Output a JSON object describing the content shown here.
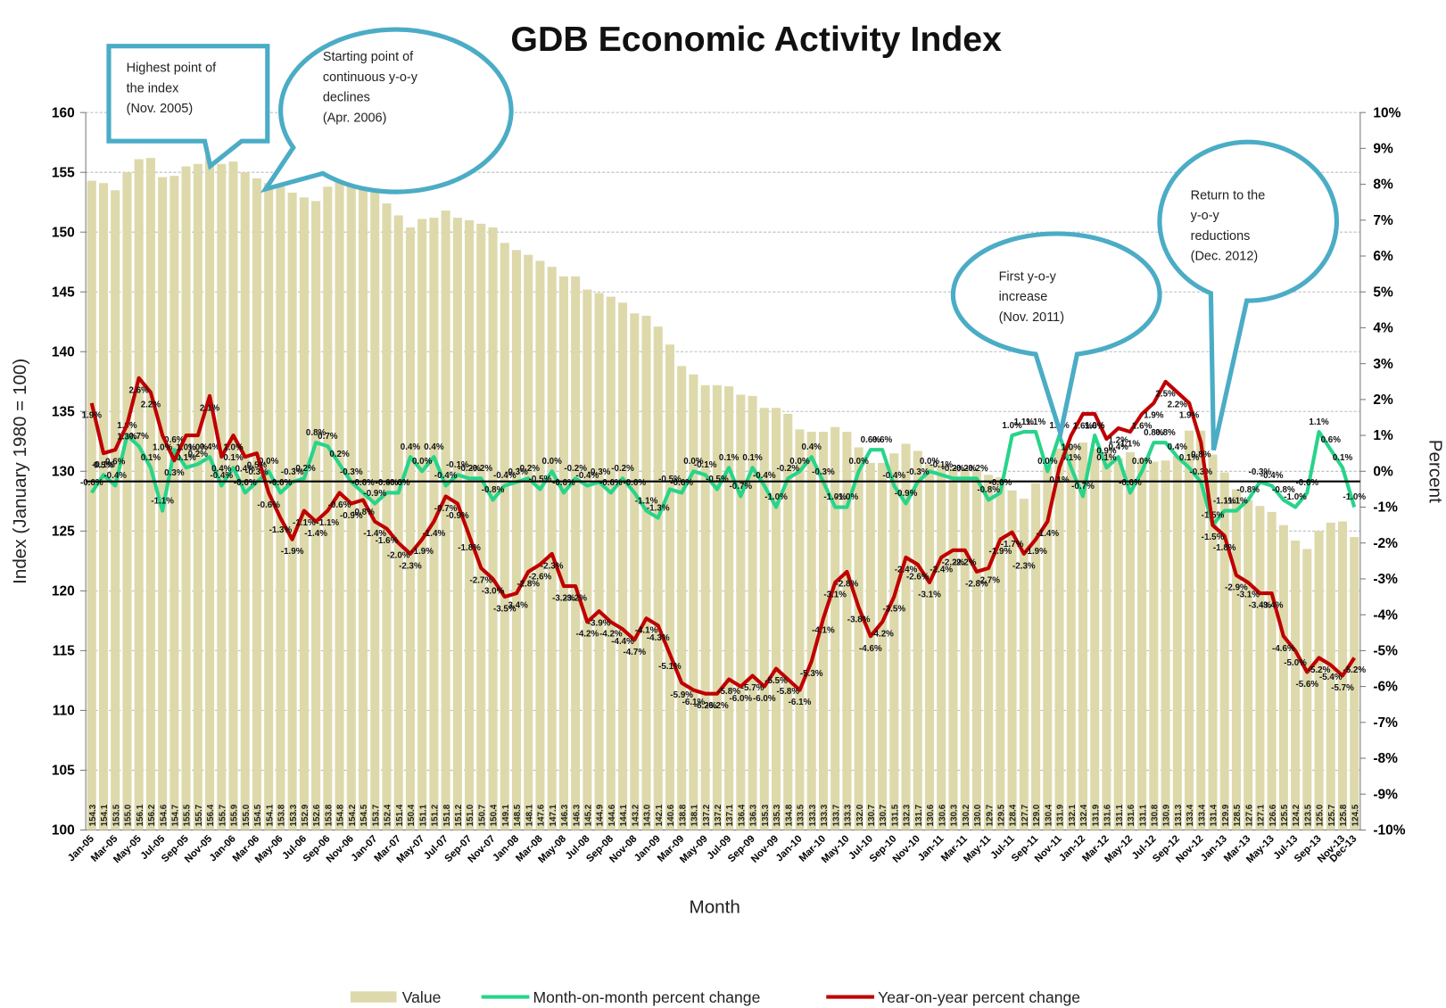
{
  "chart_data": {
    "type": "bar-line",
    "title": "GDB Economic Activity Index",
    "x_label": "Month",
    "y_label": "Index (January 1980 = 100)",
    "y2_label": "Percent",
    "annotations": [
      [
        "Highest point of",
        "the index",
        "(Nov. 2005)"
      ],
      [
        "Starting point of",
        "continuous y-o-y",
        "declines",
        "(Apr. 2006)"
      ],
      [
        "First y-o-y",
        "increase",
        "(Nov. 2011)"
      ],
      [
        "Return to the",
        "y-o-y",
        "reductions",
        "(Dec. 2012)"
      ]
    ],
    "categories": [
      "Jan-05",
      null,
      "Mar-05",
      null,
      "May-05",
      null,
      "Jul-05",
      null,
      "Sep-05",
      null,
      "Nov-05",
      null,
      "Jan-06",
      null,
      "Mar-06",
      null,
      "May-06",
      null,
      "Jul-06",
      null,
      "Sep-06",
      null,
      "Nov-06",
      null,
      "Jan-07",
      null,
      "Mar-07",
      null,
      "May-07",
      null,
      "Jul-07",
      null,
      "Sep-07",
      null,
      "Nov-07",
      null,
      "Jan-08",
      null,
      "Mar-08",
      null,
      "May-08",
      null,
      "Jul-08",
      null,
      "Sep-08",
      null,
      "Nov-08",
      null,
      "Jan-09",
      null,
      "Mar-09",
      null,
      "May-09",
      null,
      "Jul-09",
      null,
      "Sep-09",
      null,
      "Nov-09",
      null,
      "Jan-10",
      null,
      "Mar-10",
      null,
      "May-10",
      null,
      "Jul-10",
      null,
      "Sep-10",
      null,
      "Nov-10",
      null,
      "Jan-11",
      null,
      "Mar-11",
      null,
      "May-11",
      null,
      "Jul-11",
      null,
      "Sep-11",
      null,
      "Nov-11",
      null,
      "Jan-12",
      null,
      "Mar-12",
      null,
      "May-12",
      null,
      "Jul-12",
      null,
      "Sep-12",
      null,
      "Nov-12",
      null,
      "Jan-13",
      null,
      "Mar-13",
      null,
      "May-13",
      null,
      "Jul-13",
      null,
      "Sep-13",
      null,
      "Nov-13",
      "Dec-13"
    ],
    "series": [
      {
        "name": "Value",
        "color": "#ddd9ab",
        "values": [
          154.3,
          154.1,
          153.5,
          155.0,
          156.1,
          156.2,
          154.6,
          154.7,
          155.5,
          155.7,
          156.4,
          155.7,
          155.9,
          155.0,
          154.5,
          154.1,
          153.8,
          153.3,
          152.9,
          152.6,
          153.8,
          154.8,
          154.2,
          154.5,
          153.7,
          152.4,
          151.4,
          150.4,
          151.1,
          151.2,
          151.8,
          151.2,
          151.0,
          150.7,
          150.4,
          149.1,
          148.5,
          148.1,
          147.6,
          147.1,
          146.3,
          146.3,
          145.2,
          144.9,
          144.6,
          144.1,
          143.2,
          143.0,
          142.1,
          140.6,
          138.8,
          138.1,
          137.2,
          137.2,
          137.1,
          136.4,
          136.3,
          135.3,
          135.3,
          134.8,
          133.5,
          133.3,
          133.3,
          133.7,
          133.3,
          132.0,
          130.7,
          130.7,
          131.5,
          132.3,
          131.7,
          130.6,
          130.6,
          130.3,
          130.2,
          130.0,
          129.7,
          129.5,
          128.4,
          127.7,
          129.0,
          130.4,
          131.9,
          132.1,
          132.4,
          131.9,
          131.6,
          131.1,
          131.6,
          131.1,
          130.8,
          130.9,
          131.3,
          133.4,
          133.4,
          131.4,
          129.9,
          128.5,
          127.6,
          127.1,
          126.6,
          125.5,
          124.2,
          123.5,
          125.0,
          125.7,
          125.8,
          124.5
        ],
        "value_labels": [
          "154.3",
          "154.1",
          "153.5",
          "155.0",
          "156.1",
          "156.2",
          "154.6",
          "154.7",
          "155.5",
          "155.7",
          "156.4",
          "155.7",
          "155.9",
          "155.0",
          "154.5",
          "154.1",
          "153.8",
          "153.3",
          "152.9",
          "152.6",
          "153.8",
          "154.8",
          "154.2",
          "154.5",
          "153.7",
          "152.4",
          "151.4",
          "150.4",
          "151.1",
          "151.2",
          "151.8",
          "151.2",
          "151.0",
          "150.7",
          "150.4",
          "149.1",
          "148.5",
          "148.1",
          "147.6",
          "147.1",
          "146.3",
          "146.3",
          "145.2",
          "144.9",
          "144.6",
          "144.1",
          "143.2",
          "143.0",
          "142.1",
          "140.6",
          "138.8",
          "138.1",
          "137.2",
          "137.2",
          "137.1",
          "136.4",
          "136.3",
          "135.3",
          "135.3",
          "134.8",
          "133.5",
          "133.3",
          "133.3",
          "133.7",
          "133.3",
          "132.0",
          "130.7",
          "130.7",
          "131.5",
          "132.3",
          "131.7",
          "130.6",
          "130.6",
          "130.3",
          "130.2",
          "130.0",
          "129.7",
          "129.5",
          "128.4",
          "127.7",
          "129.0",
          "130.4",
          "131.9",
          "132.1",
          "132.4",
          "131.9",
          "131.6",
          "131.1",
          "131.6",
          "131.1",
          "130.8",
          "130.9",
          "131.3",
          "133.4",
          "133.4",
          "131.4",
          "129.9",
          "128.5",
          "127.6",
          "127.1",
          "126.6",
          "125.5",
          "124.2",
          "123.5",
          "125.0",
          "125.7",
          "125.8",
          "124.5"
        ]
      },
      {
        "name": "Month-on-month percent change",
        "color": "#27d48a",
        "axis": "y2",
        "values": [
          -0.6,
          -0.1,
          -0.4,
          1.0,
          0.7,
          0.1,
          -1.1,
          0.6,
          0.1,
          0.2,
          0.4,
          -0.4,
          0.1,
          -0.6,
          -0.3,
          0.0,
          -0.6,
          -0.3,
          -0.2,
          0.8,
          0.7,
          0.2,
          -0.3,
          -0.6,
          -0.9,
          -0.6,
          -0.6,
          0.4,
          0.0,
          0.4,
          -0.4,
          -0.1,
          -0.2,
          -0.2,
          -0.8,
          -0.4,
          -0.3,
          -0.2,
          -0.5,
          0.0,
          -0.6,
          -0.2,
          -0.4,
          -0.3,
          -0.6,
          -0.2,
          -0.6,
          -1.1,
          -1.3,
          -0.5,
          -0.6,
          0.0,
          -0.1,
          -0.5,
          0.1,
          -0.7,
          0.1,
          -0.4,
          -1.0,
          -0.2,
          0.0,
          0.4,
          -0.3,
          -1.0,
          -1.0,
          0.0,
          0.6,
          0.6,
          -0.4,
          -0.9,
          -0.3,
          0.0,
          -0.1,
          -0.2,
          -0.2,
          -0.2,
          -0.8,
          -0.6,
          1.0,
          1.1,
          1.1,
          0.0,
          1.0,
          0.1,
          -0.7,
          1.0,
          0.1,
          0.4,
          -0.6,
          0.0,
          0.8,
          0.8,
          0.4,
          0.1,
          -0.3,
          -1.5,
          -1.1,
          -1.1,
          -0.8,
          -0.3,
          -0.4,
          -0.8,
          -1.0,
          -0.6,
          1.1,
          0.6,
          0.1,
          -1.0
        ],
        "value_labels": [
          "-0.6%",
          "-0.1%",
          "-0.4%",
          "1.0%",
          "0.7%",
          "0.1%",
          "-1.1%",
          "0.6%",
          "0.1%",
          "0.2%",
          "0.4%",
          "-0.4%",
          "0.1%",
          "-0.6%",
          "-0.3%",
          "0.0%",
          "-0.6%",
          "-0.3%",
          "-0.2%",
          "0.8%",
          "0.7%",
          "0.2%",
          "-0.3%",
          "-0.6%",
          "-0.9%",
          "-0.6%",
          "-0.6%",
          "0.4%",
          "0.0%",
          "0.4%",
          "-0.4%",
          "-0.1%",
          "-0.2%",
          "-0.2%",
          "-0.8%",
          "-0.4%",
          "-0.3%",
          "-0.2%",
          "-0.5%",
          "0.0%",
          "-0.6%",
          "-0.2%",
          "-0.4%",
          "-0.3%",
          "-0.6%",
          "-0.2%",
          "-0.6%",
          "-1.1%",
          "-1.3%",
          "-0.5%",
          "-0.6%",
          "0.0%",
          "-0.1%",
          "-0.5%",
          "0.1%",
          "-0.7%",
          "0.1%",
          "-0.4%",
          "-1.0%",
          "-0.2%",
          "0.0%",
          "0.4%",
          "-0.3%",
          "-1.0%",
          "-1.0%",
          "0.0%",
          "0.6%",
          "0.6%",
          "-0.4%",
          "-0.9%",
          "-0.3%",
          "0.0%",
          "-0.1%",
          "-0.2%",
          "-0.2%",
          "-0.2%",
          "-0.8%",
          "-0.6%",
          "1.0%",
          "1.1%",
          "1.1%",
          "0.0%",
          "1.0%",
          "0.1%",
          "-0.7%",
          "1.0%",
          "0.1%",
          "0.4%",
          "-0.6%",
          "0.0%",
          "0.8%",
          "0.8%",
          "0.4%",
          "0.1%",
          "-0.3%",
          "-1.5%",
          "-1.1%",
          "-1.1%",
          "-0.8%",
          "-0.3%",
          "-0.4%",
          "-0.8%",
          "-1.0%",
          "-0.6%",
          "1.1%",
          "0.6%",
          "0.1%",
          "-1.0%"
        ]
      },
      {
        "name": "Year-on-year percent change",
        "color": "#c00000",
        "axis": "y2",
        "values": [
          1.9,
          0.5,
          0.6,
          1.3,
          2.6,
          2.2,
          1.0,
          0.3,
          1.0,
          1.0,
          2.1,
          0.4,
          1.0,
          0.4,
          0.5,
          -0.6,
          -1.3,
          -1.9,
          -1.1,
          -1.4,
          -1.1,
          -0.6,
          -0.9,
          -0.8,
          -1.4,
          -1.6,
          -2.0,
          -2.3,
          -1.9,
          -1.4,
          -0.7,
          -0.9,
          -1.8,
          -2.7,
          -3.0,
          -3.5,
          -3.4,
          -2.8,
          -2.6,
          -2.3,
          -3.2,
          -3.2,
          -4.2,
          -3.9,
          -4.2,
          -4.4,
          -4.7,
          -4.1,
          -4.3,
          -5.1,
          -5.9,
          -6.1,
          -6.2,
          -6.2,
          -5.8,
          -6.0,
          -5.7,
          -6.0,
          -5.5,
          -5.8,
          -6.1,
          -5.3,
          -4.1,
          -3.1,
          -2.8,
          -3.8,
          -4.6,
          -4.2,
          -3.5,
          -2.4,
          -2.6,
          -3.1,
          -2.4,
          -2.2,
          -2.2,
          -2.8,
          -2.7,
          -1.9,
          -1.7,
          -2.3,
          -1.9,
          -1.4,
          0.1,
          1.0,
          1.6,
          1.6,
          0.9,
          1.2,
          1.1,
          1.6,
          1.9,
          2.5,
          2.2,
          1.9,
          0.8,
          -1.5,
          -1.8,
          -2.9,
          -3.1,
          -3.4,
          -3.4,
          -4.6,
          -5.0,
          -5.6,
          -5.2,
          -5.4,
          -5.7,
          -5.2
        ],
        "value_labels": [
          "1.9%",
          "0.5%",
          "0.6%",
          "1.3%",
          "2.6%",
          "2.2%",
          "1.0%",
          "0.3%",
          "1.0%",
          "1.0%",
          "2.1%",
          "0.4%",
          "1.0%",
          "0.4%",
          "0.5%",
          "-0.6%",
          "-1.3%",
          "-1.9%",
          "-1.1%",
          "-1.4%",
          "-1.1%",
          "-0.6%",
          "-0.9%",
          "-0.8%",
          "-1.4%",
          "-1.6%",
          "-2.0%",
          "-2.3%",
          "-1.9%",
          "-1.4%",
          "-0.7%",
          "-0.9%",
          "-1.8%",
          "-2.7%",
          "-3.0%",
          "-3.5%",
          "-3.4%",
          "-2.8%",
          "-2.6%",
          "-2.3%",
          "-3.2%",
          "-3.2%",
          "-4.2%",
          "-3.9%",
          "-4.2%",
          "-4.4%",
          "-4.7%",
          "-4.1%",
          "-4.3%",
          "-5.1%",
          "-5.9%",
          "-6.1%",
          "-6.2%",
          "-6.2%",
          "-5.8%",
          "-6.0%",
          "-5.7%",
          "-6.0%",
          "-5.5%",
          "-5.8%",
          "-6.1%",
          "-5.3%",
          "-4.1%",
          "-3.1%",
          "-2.8%",
          "-3.8%",
          "-4.6%",
          "-4.2%",
          "-3.5%",
          "-2.4%",
          "-2.6%",
          "-3.1%",
          "-2.4%",
          "-2.2%",
          "-2.2%",
          "-2.8%",
          "-2.7%",
          "-1.9%",
          "-1.7%",
          "-2.3%",
          "-1.9%",
          "-1.4%",
          "0.1%",
          "1.0%",
          "1.6%",
          "1.6%",
          "0.9%",
          "1.2%",
          "1.1%",
          "1.6%",
          "1.9%",
          "2.5%",
          "2.2%",
          "1.9%",
          "0.8%",
          "-1.5%",
          "-1.8%",
          "-2.9%",
          "-3.1%",
          "-3.4%",
          "-3.4%",
          "-4.6%",
          "-5.0%",
          "-5.6%",
          "-5.2%",
          "-5.4%",
          "-5.7%",
          "-5.2%"
        ]
      }
    ],
    "ylim": [
      100,
      160
    ],
    "yticks": [
      100,
      105,
      110,
      115,
      120,
      125,
      130,
      135,
      140,
      145,
      150,
      155,
      160
    ],
    "y2lim": [
      -10,
      10
    ],
    "y2ticks": [
      {
        "value": -10,
        "label": "-10%"
      },
      {
        "value": -9,
        "label": "-9%"
      },
      {
        "value": -8,
        "label": "-8%"
      },
      {
        "value": -7,
        "label": "-7%"
      },
      {
        "value": -6,
        "label": "-6%"
      },
      {
        "value": -5,
        "label": "-5%"
      },
      {
        "value": -4,
        "label": "-4%"
      },
      {
        "value": -3,
        "label": "-3%"
      },
      {
        "value": -2,
        "label": "-2%"
      },
      {
        "value": -1,
        "label": "-1%"
      },
      {
        "value": 0,
        "label": "0%"
      },
      {
        "value": 1,
        "label": "1%"
      },
      {
        "value": 2,
        "label": "2%"
      },
      {
        "value": 3,
        "label": "3%"
      },
      {
        "value": 4,
        "label": "4%"
      },
      {
        "value": 5,
        "label": "5%"
      },
      {
        "value": 6,
        "label": "6%"
      },
      {
        "value": 7,
        "label": "7%"
      },
      {
        "value": 8,
        "label": "8%"
      },
      {
        "value": 9,
        "label": "9%"
      },
      {
        "value": 10,
        "label": "10%"
      }
    ],
    "grid": true,
    "legend": "bottom"
  }
}
